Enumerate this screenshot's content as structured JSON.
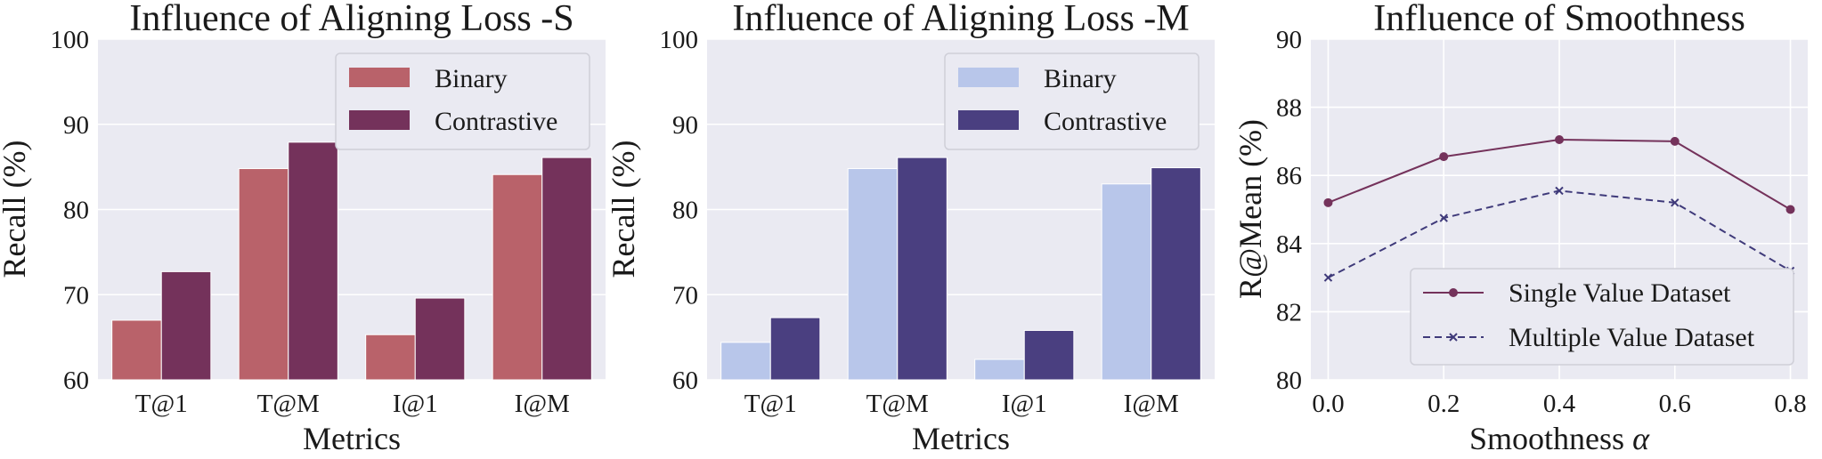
{
  "chart_data": [
    {
      "type": "bar",
      "title": "Influence of Aligning Loss -S",
      "xlabel": "Metrics",
      "ylabel": "Recall (%)",
      "ylim": [
        60,
        100
      ],
      "yticks": [
        "60",
        "70",
        "80",
        "90",
        "100"
      ],
      "categories": [
        "T@1",
        "T@M",
        "I@1",
        "I@M"
      ],
      "series": [
        {
          "name": "Binary",
          "color": "#b9626a",
          "values": [
            67.0,
            84.8,
            65.3,
            84.1
          ]
        },
        {
          "name": "Contrastive",
          "color": "#74325b",
          "values": [
            72.7,
            87.9,
            69.6,
            86.1
          ]
        }
      ],
      "legend": "top-right",
      "grid": true
    },
    {
      "type": "bar",
      "title": "Influence of Aligning Loss -M",
      "xlabel": "Metrics",
      "ylabel": "Recall (%)",
      "ylim": [
        60,
        100
      ],
      "yticks": [
        "60",
        "70",
        "80",
        "90",
        "100"
      ],
      "categories": [
        "T@1",
        "T@M",
        "I@1",
        "I@M"
      ],
      "series": [
        {
          "name": "Binary",
          "color": "#b8c6ea",
          "values": [
            64.4,
            84.8,
            62.4,
            83.0
          ]
        },
        {
          "name": "Contrastive",
          "color": "#4a3f80",
          "values": [
            67.3,
            86.1,
            65.8,
            84.9
          ]
        }
      ],
      "legend": "top-right",
      "grid": true
    },
    {
      "type": "line",
      "title": "Influence of Smoothness",
      "xlabel": "Smoothness",
      "xlabel_symbol": "α",
      "ylabel": "R@Mean (%)",
      "ylim": [
        80,
        90
      ],
      "xlim": [
        -0.03,
        0.83
      ],
      "yticks": [
        "80",
        "82",
        "84",
        "86",
        "88",
        "90"
      ],
      "xticks": [
        "0.0",
        "0.2",
        "0.4",
        "0.6",
        "0.8"
      ],
      "x": [
        0.0,
        0.2,
        0.4,
        0.6,
        0.8
      ],
      "series": [
        {
          "name": "Single Value Dataset",
          "color": "#74325b",
          "marker": "circle",
          "linestyle": "solid",
          "values": [
            85.2,
            86.55,
            87.05,
            87.0,
            85.0
          ]
        },
        {
          "name": "Multiple Value Dataset",
          "color": "#3f3a7a",
          "marker": "x",
          "linestyle": "dashed",
          "values": [
            83.0,
            84.75,
            85.55,
            85.2,
            83.2
          ]
        }
      ],
      "legend": "lower-right",
      "grid": true
    }
  ]
}
